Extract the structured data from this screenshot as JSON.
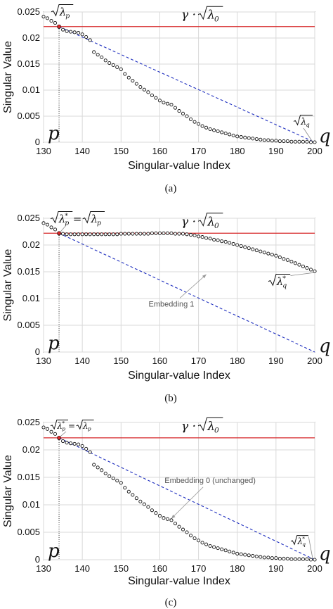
{
  "chart_data": [
    {
      "type": "scatter",
      "panel": "(a)",
      "xlabel": "Singular-value Index",
      "ylabel": "Singular Value",
      "xlim": [
        130,
        200
      ],
      "ylim": [
        0,
        0.025
      ],
      "xticks": [
        "130",
        "140",
        "150",
        "160",
        "170",
        "180",
        "190",
        "200"
      ],
      "yticks": [
        "0",
        "0.005",
        "0.01",
        "0.015",
        "0.02",
        "0.025"
      ],
      "grid": true,
      "threshold": {
        "label": "γ · √λ₀",
        "value": 0.0222,
        "color": "#d62728"
      },
      "line": {
        "x": [
          134,
          200
        ],
        "y": [
          0.0222,
          0
        ],
        "color": "#1f2fbf",
        "style": "dashed"
      },
      "vline": {
        "x": 134
      },
      "points": {
        "x": [
          130,
          131,
          132,
          133,
          134,
          135,
          136,
          137,
          138,
          139,
          140,
          141,
          142,
          143,
          144,
          145,
          146,
          147,
          148,
          149,
          150,
          151,
          152,
          153,
          154,
          155,
          156,
          157,
          158,
          159,
          160,
          161,
          162,
          163,
          164,
          165,
          166,
          167,
          168,
          169,
          170,
          171,
          172,
          173,
          174,
          175,
          176,
          177,
          178,
          179,
          180,
          181,
          182,
          183,
          184,
          185,
          186,
          187,
          188,
          189,
          190,
          191,
          192,
          193,
          194,
          195,
          196,
          197,
          198,
          199,
          200
        ],
        "y": [
          0.0241,
          0.0238,
          0.0233,
          0.0229,
          0.0221,
          0.0216,
          0.0213,
          0.0212,
          0.0211,
          0.021,
          0.0207,
          0.0202,
          0.0196,
          0.0173,
          0.0168,
          0.0163,
          0.0157,
          0.0152,
          0.0148,
          0.0144,
          0.014,
          0.0131,
          0.0124,
          0.0118,
          0.0112,
          0.0106,
          0.0101,
          0.0096,
          0.009,
          0.0085,
          0.008,
          0.0076,
          0.0074,
          0.0072,
          0.0066,
          0.006,
          0.0055,
          0.005,
          0.0044,
          0.0039,
          0.0035,
          0.0031,
          0.0028,
          0.0025,
          0.0023,
          0.0021,
          0.0019,
          0.0017,
          0.0015,
          0.0013,
          0.0011,
          0.001,
          0.0009,
          0.0008,
          0.0007,
          0.0006,
          0.0005,
          0.0004,
          0.0004,
          0.0003,
          0.0003,
          0.0002,
          0.0002,
          0.0002,
          0.0001,
          0.0001,
          0.0001,
          0.0001,
          0.0001,
          0.0,
          0.0
        ]
      },
      "labels": {
        "p": "p",
        "q": "q",
        "lambda_p": "λ",
        "lambda_p_sub": "p",
        "lambda_q": "λ",
        "lambda_q_sub": "q",
        "threshold_text": "γ · ",
        "threshold_lambda": "λ",
        "threshold_sub": "0"
      },
      "caption": "(a)"
    },
    {
      "type": "scatter",
      "panel": "(b)",
      "xlabel": "Singular-value Index",
      "ylabel": "Singular Value",
      "xlim": [
        130,
        200
      ],
      "ylim": [
        0,
        0.025
      ],
      "xticks": [
        "130",
        "140",
        "150",
        "160",
        "170",
        "180",
        "190",
        "200"
      ],
      "yticks": [
        "0",
        "0.005",
        "0.01",
        "0.015",
        "0.02",
        "0.025"
      ],
      "grid": true,
      "threshold": {
        "label": "γ · √λ₀",
        "value": 0.0222,
        "color": "#d62728"
      },
      "line": {
        "x": [
          134,
          200
        ],
        "y": [
          0.0222,
          0
        ],
        "color": "#1f2fbf",
        "style": "dashed"
      },
      "vline": {
        "x": 134
      },
      "points": {
        "x": [
          130,
          131,
          132,
          133,
          134,
          135,
          136,
          137,
          138,
          139,
          140,
          141,
          142,
          143,
          144,
          145,
          146,
          147,
          148,
          149,
          150,
          151,
          152,
          153,
          154,
          155,
          156,
          157,
          158,
          159,
          160,
          161,
          162,
          163,
          164,
          165,
          166,
          167,
          168,
          169,
          170,
          171,
          172,
          173,
          174,
          175,
          176,
          177,
          178,
          179,
          180,
          181,
          182,
          183,
          184,
          185,
          186,
          187,
          188,
          189,
          190,
          191,
          192,
          193,
          194,
          195,
          196,
          197,
          198,
          199,
          200
        ],
        "y": [
          0.0241,
          0.0238,
          0.0233,
          0.0229,
          0.0221,
          0.0221,
          0.022,
          0.022,
          0.022,
          0.022,
          0.022,
          0.022,
          0.022,
          0.022,
          0.022,
          0.022,
          0.022,
          0.022,
          0.022,
          0.022,
          0.0221,
          0.0221,
          0.0221,
          0.0221,
          0.0221,
          0.0221,
          0.0221,
          0.0221,
          0.0222,
          0.0222,
          0.0222,
          0.0222,
          0.0222,
          0.0222,
          0.0221,
          0.0221,
          0.0221,
          0.022,
          0.0219,
          0.0218,
          0.0216,
          0.0215,
          0.0213,
          0.0212,
          0.021,
          0.0209,
          0.0207,
          0.0206,
          0.0204,
          0.0202,
          0.02,
          0.0198,
          0.0196,
          0.0194,
          0.0192,
          0.019,
          0.0188,
          0.0186,
          0.0184,
          0.0182,
          0.018,
          0.0177,
          0.0174,
          0.0172,
          0.0169,
          0.0166,
          0.0163,
          0.016,
          0.0157,
          0.0154,
          0.0151
        ]
      },
      "annotation": {
        "text": "Embedding 1",
        "x": 163,
        "y": 0.0085,
        "arrow_to": [
          172,
          0.0145
        ]
      },
      "labels": {
        "p": "p",
        "q": "q",
        "lambda_p_star": "λ",
        "lambda_p_star_sup": "*",
        "lambda_p_star_sub": "p",
        "equals": "=",
        "lambda_p": "λ",
        "lambda_p_sub": "p",
        "lambda_q_star": "λ",
        "lambda_q_star_sup": "*",
        "lambda_q_star_sub": "q",
        "threshold_text": "γ · ",
        "threshold_lambda": "λ",
        "threshold_sub": "0"
      },
      "caption": "(b)"
    },
    {
      "type": "scatter",
      "panel": "(c)",
      "xlabel": "Singular-value Index",
      "ylabel": "Singular Value",
      "xlim": [
        130,
        200
      ],
      "ylim": [
        0,
        0.025
      ],
      "xticks": [
        "130",
        "140",
        "150",
        "160",
        "170",
        "180",
        "190",
        "200"
      ],
      "yticks": [
        "0",
        "0.005",
        "0.01",
        "0.015",
        "0.02",
        "0.025"
      ],
      "grid": true,
      "threshold": {
        "label": "γ · √λ₀",
        "value": 0.0222,
        "color": "#d62728"
      },
      "line": {
        "x": [
          134,
          200
        ],
        "y": [
          0.0222,
          0
        ],
        "color": "#1f2fbf",
        "style": "dashed"
      },
      "vline": {
        "x": 134
      },
      "points": {
        "x": [
          130,
          131,
          132,
          133,
          134,
          135,
          136,
          137,
          138,
          139,
          140,
          141,
          142,
          143,
          144,
          145,
          146,
          147,
          148,
          149,
          150,
          151,
          152,
          153,
          154,
          155,
          156,
          157,
          158,
          159,
          160,
          161,
          162,
          163,
          164,
          165,
          166,
          167,
          168,
          169,
          170,
          171,
          172,
          173,
          174,
          175,
          176,
          177,
          178,
          179,
          180,
          181,
          182,
          183,
          184,
          185,
          186,
          187,
          188,
          189,
          190,
          191,
          192,
          193,
          194,
          195,
          196,
          197,
          198,
          199,
          200
        ],
        "y": [
          0.0241,
          0.0238,
          0.0233,
          0.0229,
          0.0221,
          0.0216,
          0.0213,
          0.0212,
          0.0211,
          0.021,
          0.0207,
          0.0202,
          0.0196,
          0.0173,
          0.0168,
          0.0163,
          0.0157,
          0.0152,
          0.0148,
          0.0144,
          0.014,
          0.0131,
          0.0124,
          0.0118,
          0.0112,
          0.0106,
          0.0101,
          0.0096,
          0.009,
          0.0085,
          0.008,
          0.0076,
          0.0074,
          0.0072,
          0.0066,
          0.006,
          0.0055,
          0.005,
          0.0044,
          0.0039,
          0.0035,
          0.0031,
          0.0028,
          0.0025,
          0.0023,
          0.0021,
          0.0019,
          0.0017,
          0.0015,
          0.0013,
          0.0011,
          0.001,
          0.0009,
          0.0008,
          0.0007,
          0.0006,
          0.0005,
          0.0004,
          0.0004,
          0.0003,
          0.0003,
          0.0002,
          0.0002,
          0.0002,
          0.0001,
          0.0001,
          0.0001,
          0.0001,
          0.0001,
          0.0,
          0.0
        ]
      },
      "annotation": {
        "text": "Embedding 0 (unchanged)",
        "x": 173,
        "y": 0.014,
        "arrow_to": [
          163,
          0.0075
        ]
      },
      "labels": {
        "p": "p",
        "q": "q",
        "lambda_p_star": "λ",
        "lambda_p_star_sup": "*",
        "lambda_p_star_sub": "p",
        "equals": "=",
        "lambda_p": "λ",
        "lambda_p_sub": "p",
        "lambda_q_star": "λ",
        "lambda_q_star_sup": "*",
        "lambda_q_star_sub": "q",
        "threshold_text": "γ · ",
        "threshold_lambda": "λ",
        "threshold_sub": "0"
      },
      "caption": "(c)"
    }
  ]
}
